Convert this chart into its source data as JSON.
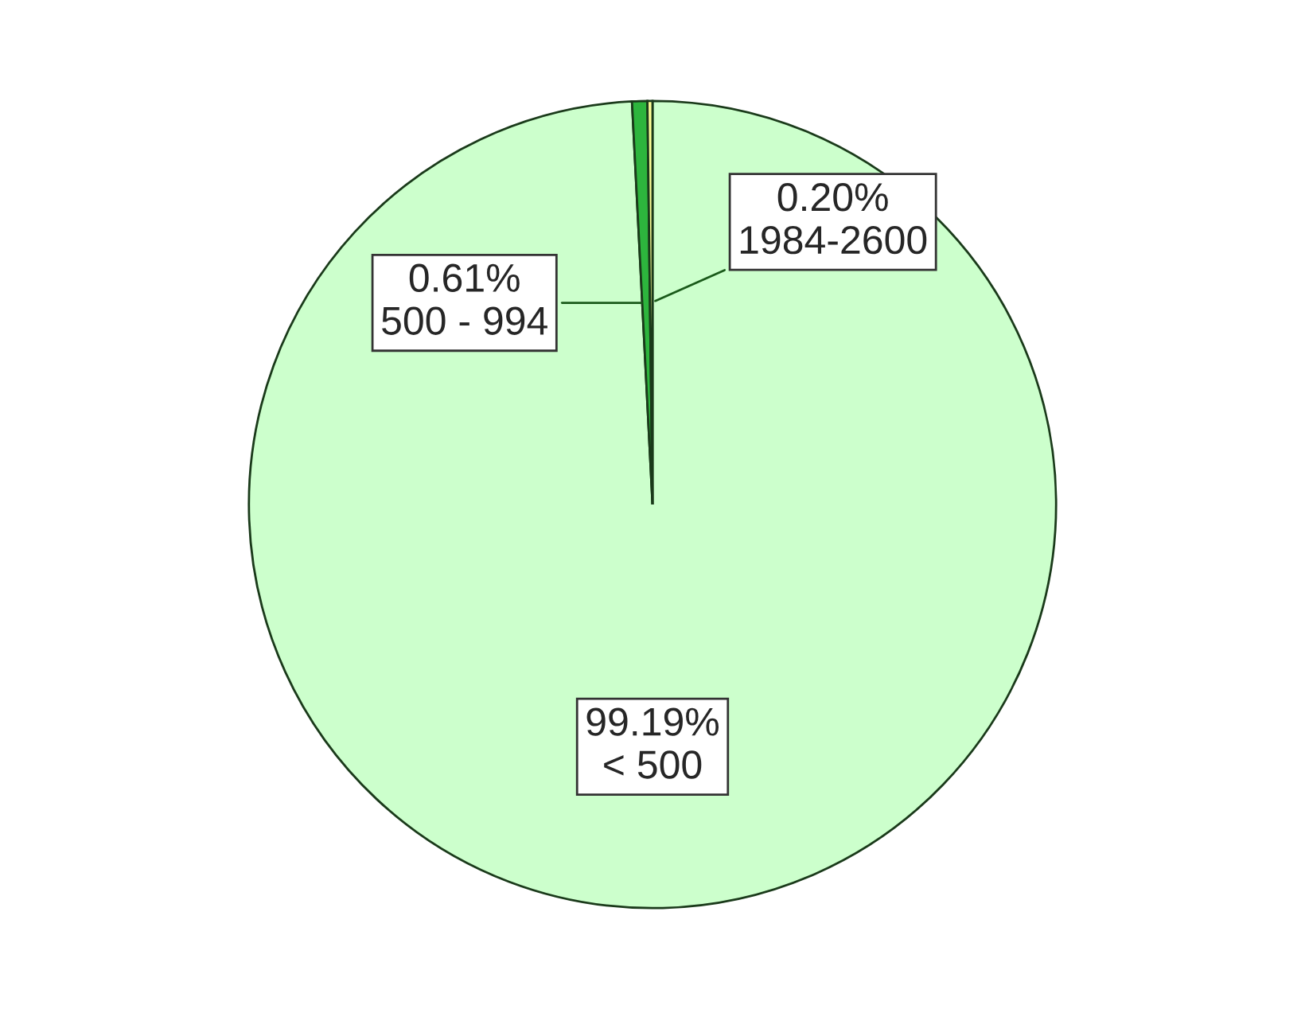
{
  "chart_data": {
    "type": "pie",
    "categories": [
      "< 500",
      "500 - 994",
      "1984-2600"
    ],
    "values": [
      99.19,
      0.61,
      0.2
    ],
    "value_labels": [
      "99.19%",
      "0.61%",
      "0.20%"
    ],
    "colors": [
      "#ccffcc",
      "#2db53d",
      "#ffff99"
    ]
  }
}
